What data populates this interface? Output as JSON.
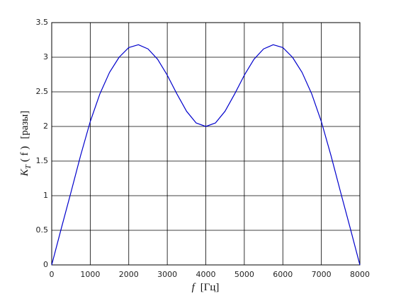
{
  "chart_data": {
    "type": "line",
    "x": [
      0,
      250,
      500,
      750,
      1000,
      1250,
      1500,
      1750,
      2000,
      2250,
      2500,
      2750,
      3000,
      3250,
      3500,
      3750,
      4000,
      4250,
      4500,
      4750,
      5000,
      5250,
      5500,
      5750,
      6000,
      6250,
      6500,
      6750,
      7000,
      7250,
      7500,
      7750,
      8000
    ],
    "series": [
      {
        "color": "#0000cc",
        "values": [
          0,
          0.53,
          1.05,
          1.58,
          2.07,
          2.47,
          2.78,
          3.0,
          3.14,
          3.18,
          3.12,
          2.97,
          2.74,
          2.47,
          2.22,
          2.05,
          2.0,
          2.05,
          2.22,
          2.47,
          2.74,
          2.97,
          3.12,
          3.18,
          3.14,
          3.0,
          2.78,
          2.47,
          2.07,
          1.58,
          1.05,
          0.53,
          0
        ]
      }
    ],
    "xlim": [
      0,
      8000
    ],
    "xticks": [
      0,
      1000,
      2000,
      3000,
      4000,
      5000,
      6000,
      7000,
      8000
    ],
    "ylim": [
      0,
      3.5
    ],
    "yticks": [
      0,
      0.5,
      1,
      1.5,
      2,
      2.5,
      3,
      3.5
    ],
    "grid": true,
    "x_label": {
      "symbol": "f",
      "unit": "[Гц]"
    },
    "y_label": {
      "symbol": "K",
      "subscript": "T",
      "argument": "( f )",
      "unit": "[разы]"
    }
  }
}
